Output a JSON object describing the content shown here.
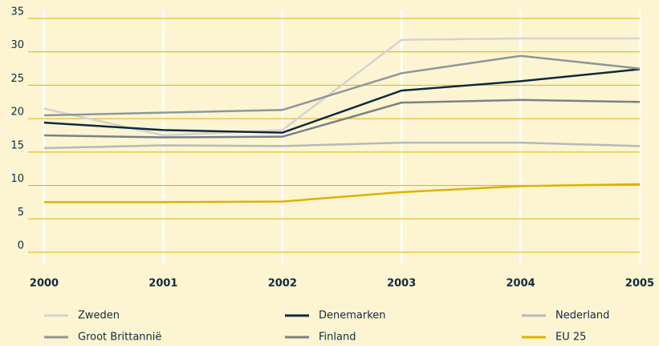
{
  "chart_data": {
    "type": "line",
    "categories": [
      "2000",
      "2001",
      "2002",
      "2003",
      "2004",
      "2005"
    ],
    "series": [
      {
        "name": "Zweden",
        "color": "#d3d3d0",
        "values": [
          21.5,
          17.5,
          18.3,
          31.8,
          32.0,
          32.0
        ]
      },
      {
        "name": "Denemarken",
        "color": "#0e2a40",
        "values": [
          19.4,
          18.3,
          17.9,
          24.2,
          25.6,
          27.4
        ]
      },
      {
        "name": "Nederland",
        "color": "#b6b9b8",
        "values": [
          15.6,
          16.0,
          15.9,
          16.4,
          16.4,
          15.9
        ]
      },
      {
        "name": "Groot Brittannië",
        "color": "#8e9799",
        "values": [
          20.5,
          20.9,
          21.3,
          26.8,
          29.4,
          27.5
        ]
      },
      {
        "name": "Finland",
        "color": "#788284",
        "values": [
          17.5,
          17.2,
          17.3,
          22.4,
          22.8,
          22.5
        ]
      },
      {
        "name": "EU 25",
        "color": "#e0b000",
        "values": [
          7.5,
          7.5,
          7.6,
          9.0,
          9.9,
          10.2
        ]
      }
    ],
    "ylim": [
      0,
      35
    ],
    "yticks": [
      0,
      5,
      10,
      15,
      20,
      25,
      30,
      35
    ],
    "grid": true
  }
}
